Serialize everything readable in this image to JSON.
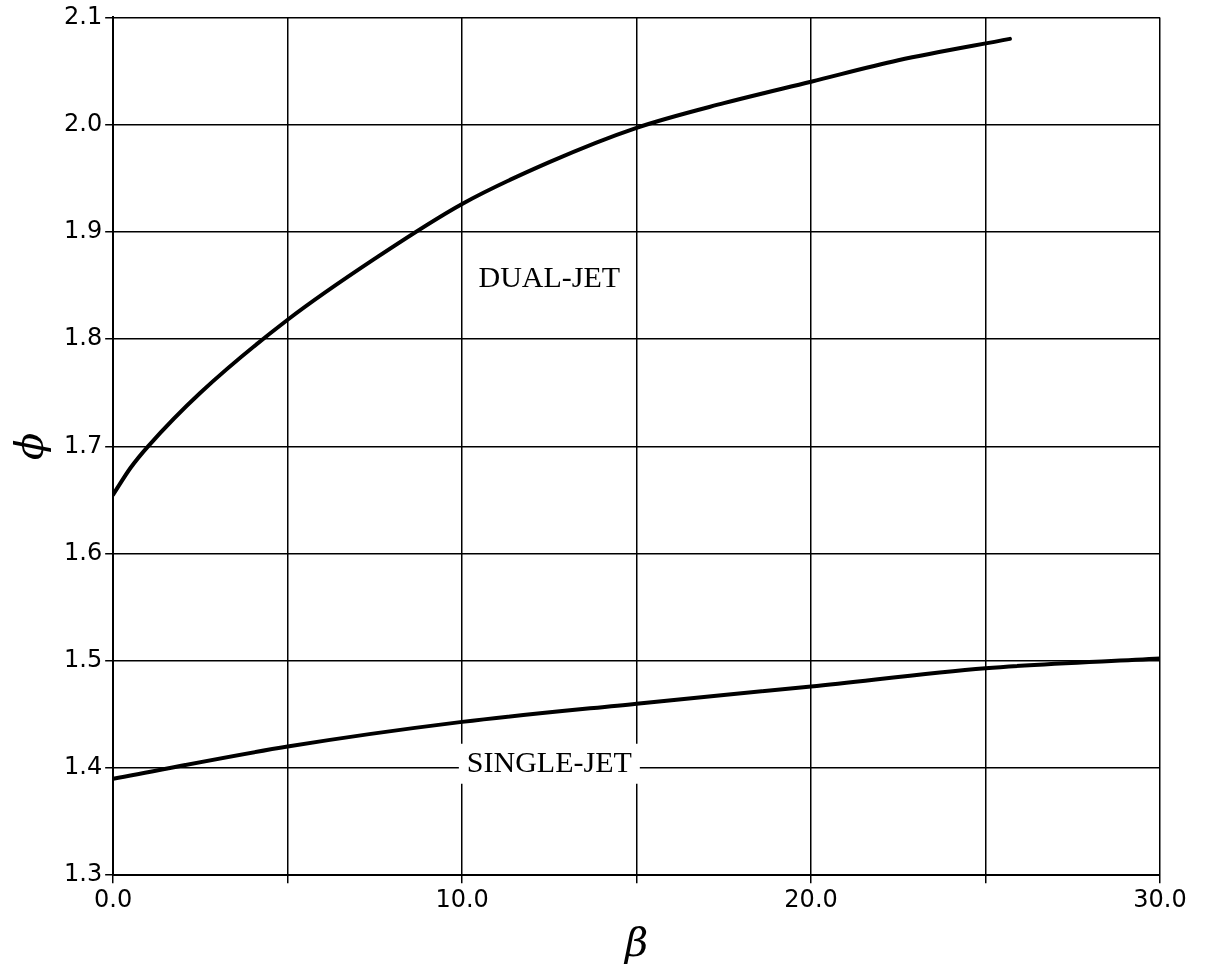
{
  "chart_data": {
    "type": "line",
    "xlabel": "β",
    "ylabel": "ϕ",
    "xlim": [
      0,
      30
    ],
    "ylim": [
      1.3,
      2.1
    ],
    "xticks": [
      {
        "value": 0,
        "label": "0.0"
      },
      {
        "value": 5,
        "label": null
      },
      {
        "value": 10,
        "label": "10.0"
      },
      {
        "value": 15,
        "label": null
      },
      {
        "value": 20,
        "label": "20.0"
      },
      {
        "value": 25,
        "label": null
      },
      {
        "value": 30,
        "label": "30.0"
      }
    ],
    "yticks": [
      1.3,
      1.4,
      1.5,
      1.6,
      1.7,
      1.8,
      1.9,
      {
        "value": 2.0,
        "label": "2.0"
      },
      2.1
    ],
    "grid": true,
    "legend": false,
    "marker": "none",
    "line_style": "solid",
    "series": [
      {
        "name": "DUAL-JET",
        "color": "#000000",
        "x": [
          0,
          0.5,
          1,
          2.5,
          5,
          7.5,
          10,
          12.5,
          15,
          17.5,
          20,
          22.5,
          25.7
        ],
        "values": [
          1.655,
          1.68,
          1.7,
          1.75,
          1.818,
          1.875,
          1.926,
          1.965,
          1.997,
          2.02,
          2.04,
          2.06,
          2.08
        ]
      },
      {
        "name": "SINGLE-JET",
        "color": "#000000",
        "x": [
          0,
          5,
          10,
          15,
          20,
          25,
          30
        ],
        "values": [
          1.39,
          1.42,
          1.443,
          1.46,
          1.476,
          1.493,
          1.502
        ]
      }
    ]
  }
}
